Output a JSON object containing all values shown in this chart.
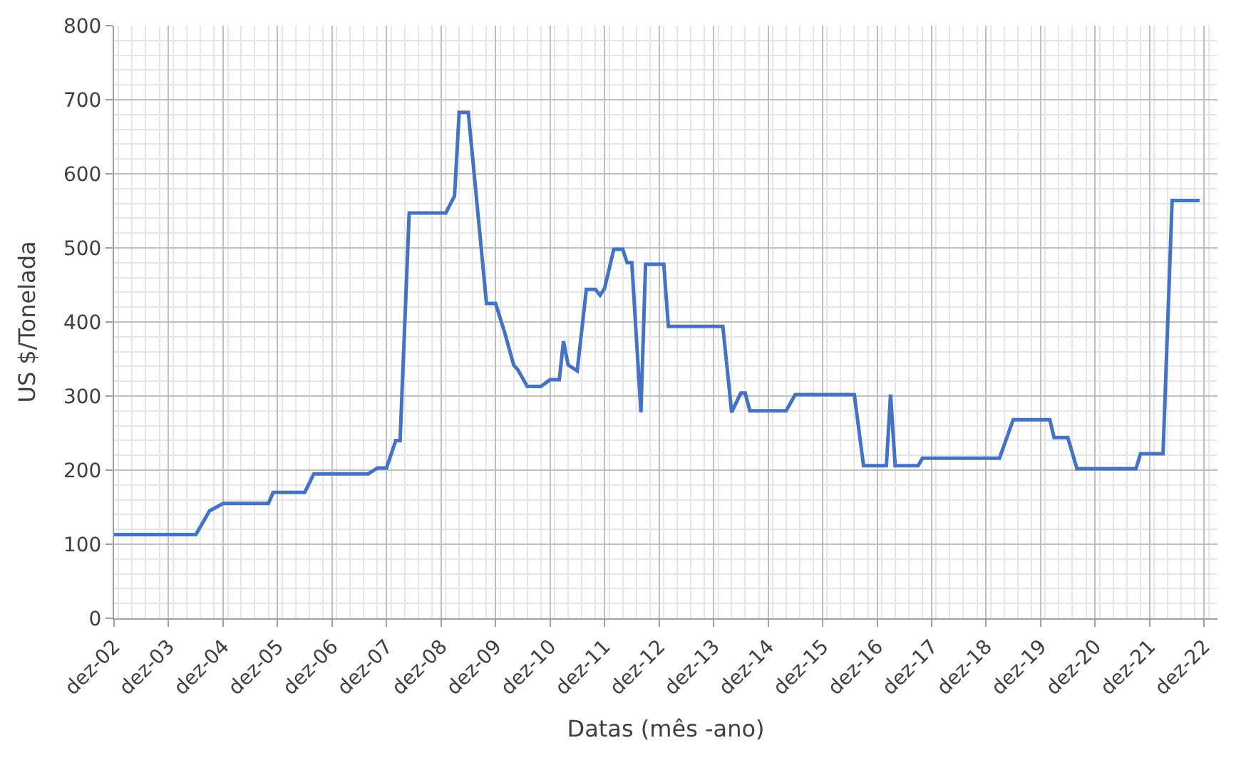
{
  "chart_data": {
    "type": "line",
    "xlabel": "Datas (mês -ano)",
    "ylabel": "US $/Tonelada",
    "x": [
      "2002-12",
      "2004-06",
      "2004-09",
      "2004-12",
      "2005-10",
      "2005-11",
      "2006-06",
      "2006-08",
      "2007-08",
      "2007-10",
      "2007-12",
      "2008-02",
      "2008-03",
      "2008-05",
      "2009-01",
      "2009-03",
      "2009-04",
      "2009-06",
      "2009-10",
      "2009-12",
      "2010-02",
      "2010-04",
      "2010-05",
      "2010-07",
      "2010-10",
      "2010-12",
      "2011-02",
      "2011-03",
      "2011-04",
      "2011-06",
      "2011-08",
      "2011-10",
      "2011-11",
      "2011-12",
      "2012-02",
      "2012-04",
      "2012-05",
      "2012-06",
      "2012-08",
      "2012-09",
      "2013-01",
      "2013-02",
      "2014-02",
      "2014-04",
      "2014-06",
      "2014-07",
      "2014-08",
      "2015-04",
      "2015-06",
      "2016-07",
      "2016-09",
      "2017-02",
      "2017-03",
      "2017-04",
      "2017-09",
      "2017-10",
      "2019-03",
      "2019-06",
      "2020-02",
      "2020-03",
      "2020-06",
      "2020-08",
      "2021-09",
      "2021-10",
      "2022-03",
      "2022-05",
      "2022-11"
    ],
    "series": [
      {
        "color": "#4472c4",
        "values": [
          113,
          113,
          145,
          155,
          155,
          170,
          170,
          195,
          195,
          203,
          203,
          240,
          240,
          547,
          547,
          570,
          683,
          683,
          425,
          425,
          385,
          342,
          335,
          313,
          313,
          322,
          322,
          374,
          342,
          334,
          444,
          444,
          436,
          445,
          498,
          498,
          480,
          480,
          278,
          478,
          478,
          394,
          394,
          278,
          304,
          304,
          280,
          280,
          302,
          302,
          206,
          206,
          302,
          206,
          206,
          216,
          216,
          268,
          268,
          244,
          244,
          202,
          202,
          222,
          222,
          564,
          564
        ]
      }
    ],
    "xlim": [
      "2002-12",
      "2023-03"
    ],
    "xticks": [
      {
        "value": "2002-12",
        "label": "dez-02"
      },
      {
        "value": "2003-12",
        "label": "dez-03"
      },
      {
        "value": "2004-12",
        "label": "dez-04"
      },
      {
        "value": "2005-12",
        "label": "dez-05"
      },
      {
        "value": "2006-12",
        "label": "dez-06"
      },
      {
        "value": "2007-12",
        "label": "dez-07"
      },
      {
        "value": "2008-12",
        "label": "dez-08"
      },
      {
        "value": "2009-12",
        "label": "dez-09"
      },
      {
        "value": "2010-12",
        "label": "dez-10"
      },
      {
        "value": "2011-12",
        "label": "dez-11"
      },
      {
        "value": "2012-12",
        "label": "dez-12"
      },
      {
        "value": "2013-12",
        "label": "dez-13"
      },
      {
        "value": "2014-12",
        "label": "dez-14"
      },
      {
        "value": "2015-12",
        "label": "dez-15"
      },
      {
        "value": "2016-12",
        "label": "dez-16"
      },
      {
        "value": "2017-12",
        "label": "dez-17"
      },
      {
        "value": "2018-12",
        "label": "dez-18"
      },
      {
        "value": "2019-12",
        "label": "dez-19"
      },
      {
        "value": "2020-12",
        "label": "dez-20"
      },
      {
        "value": "2021-12",
        "label": "dez-21"
      },
      {
        "value": "2022-12",
        "label": "dez-22"
      }
    ],
    "ylim": [
      0,
      800
    ],
    "yticks": [
      0,
      100,
      200,
      300,
      400,
      500,
      600,
      700,
      800
    ],
    "grid": true,
    "marker": "none",
    "line_style": "solid"
  }
}
